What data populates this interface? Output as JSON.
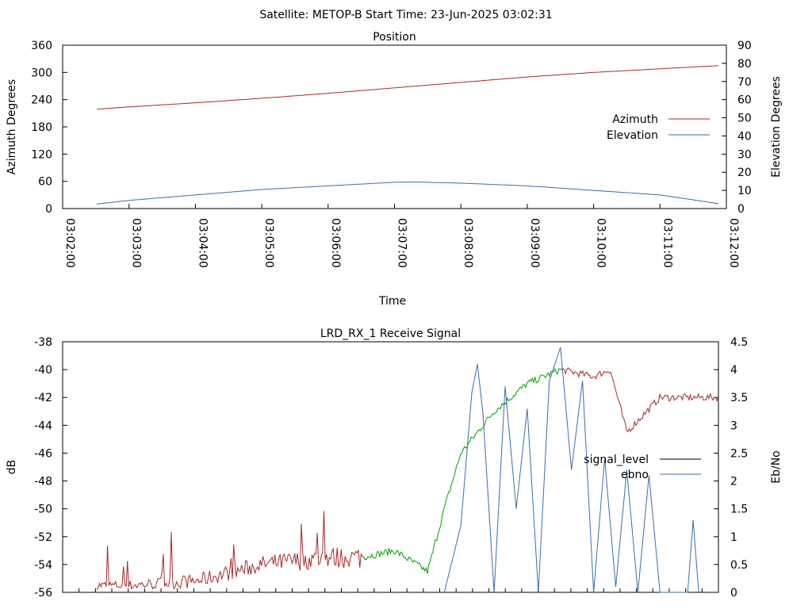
{
  "header": {
    "satellite": "Satellite: METOP-B",
    "start_time": "Start Time: 23-Jun-2025 03:02:31"
  },
  "chart_data": [
    {
      "type": "line",
      "title": "Position",
      "xlabel": "Time",
      "ylabel": "Azimuth Degrees",
      "y2label": "Elevation Degrees",
      "x_ticks": [
        "03:02:00",
        "03:03:00",
        "03:04:00",
        "03:05:00",
        "03:06:00",
        "03:07:00",
        "03:08:00",
        "03:09:00",
        "03:10:00",
        "03:11:00",
        "03:12:00"
      ],
      "xlim_seconds_after_0302": [
        0,
        600
      ],
      "ylim": [
        0,
        360
      ],
      "y_ticks": [
        "0",
        "60",
        "120",
        "180",
        "240",
        "300",
        "360"
      ],
      "y2lim": [
        0,
        90
      ],
      "y2_ticks": [
        "0",
        "10",
        "20",
        "30",
        "40",
        "50",
        "60",
        "70",
        "80",
        "90"
      ],
      "legend_position": "right",
      "series": [
        {
          "name": "Azimuth",
          "axis": "left",
          "color": "#a52a2a",
          "x": [
            "03:02:31",
            "03:03:00",
            "03:04:00",
            "03:05:00",
            "03:06:00",
            "03:07:00",
            "03:08:00",
            "03:09:00",
            "03:10:00",
            "03:11:00",
            "03:11:53"
          ],
          "values": [
            219,
            224,
            233,
            243,
            254,
            266,
            278,
            290,
            300,
            308,
            315
          ]
        },
        {
          "name": "Elevation",
          "axis": "right",
          "color": "#3a6fa8",
          "x": [
            "03:02:31",
            "03:03:00",
            "03:04:00",
            "03:05:00",
            "03:06:00",
            "03:07:00",
            "03:07:20",
            "03:08:00",
            "03:09:00",
            "03:10:00",
            "03:11:00",
            "03:11:53"
          ],
          "values": [
            2.5,
            4.5,
            7.5,
            10.5,
            12.5,
            14.5,
            14.6,
            14.0,
            12.5,
            10.0,
            7.5,
            2.7
          ]
        }
      ]
    },
    {
      "type": "line",
      "title": "LRD_RX_1 Receive Signal",
      "ylabel": "dB",
      "y2label": "Eb/No",
      "ylim": [
        -56,
        -38
      ],
      "y_ticks": [
        "-56",
        "-54",
        "-52",
        "-50",
        "-48",
        "-46",
        "-44",
        "-42",
        "-40",
        "-38"
      ],
      "y2lim": [
        0,
        4.5
      ],
      "y2_ticks": [
        "0",
        "0.5",
        "1",
        "1.5",
        "2",
        "2.5",
        "3",
        "3.5",
        "4",
        "4.5"
      ],
      "legend_position": "right",
      "series": [
        {
          "name": "signal_level",
          "axis": "left",
          "color": "#000000",
          "segment_colors": [
            "#a52a2a",
            "#00a000",
            "#a52a2a"
          ],
          "x": [
            "03:02:31",
            "03:03:00",
            "03:04:00",
            "03:05:00",
            "03:06:00",
            "03:06:30",
            "03:07:00",
            "03:07:30",
            "03:07:45",
            "03:08:00",
            "03:08:30",
            "03:09:00",
            "03:09:30",
            "03:10:00",
            "03:10:15",
            "03:10:30",
            "03:11:00",
            "03:11:53"
          ],
          "values": [
            -55.5,
            -55.5,
            -55.2,
            -54.0,
            -53.5,
            -53.5,
            -53.0,
            -54.5,
            -50.0,
            -46.0,
            -43.0,
            -41.0,
            -40.0,
            -40.5,
            -40.0,
            -44.5,
            -42.0,
            -42.0
          ]
        },
        {
          "name": "ebno",
          "axis": "right",
          "color": "#3a6fa8",
          "x": [
            "03:07:45",
            "03:08:00",
            "03:08:10",
            "03:08:15",
            "03:08:20",
            "03:08:30",
            "03:08:40",
            "03:08:50",
            "03:09:00",
            "03:09:10",
            "03:09:20",
            "03:09:30",
            "03:09:40",
            "03:09:50",
            "03:10:00",
            "03:10:10",
            "03:10:20",
            "03:10:30",
            "03:10:40",
            "03:10:50",
            "03:11:00",
            "03:11:25",
            "03:11:30",
            "03:11:35"
          ],
          "values": [
            0,
            1.2,
            3.6,
            4.1,
            3.2,
            0,
            3.7,
            1.5,
            3.3,
            0,
            3.8,
            4.4,
            2.2,
            3.8,
            0,
            2.4,
            0.1,
            2.2,
            0,
            2.1,
            0,
            0,
            1.3,
            0
          ]
        }
      ]
    }
  ]
}
